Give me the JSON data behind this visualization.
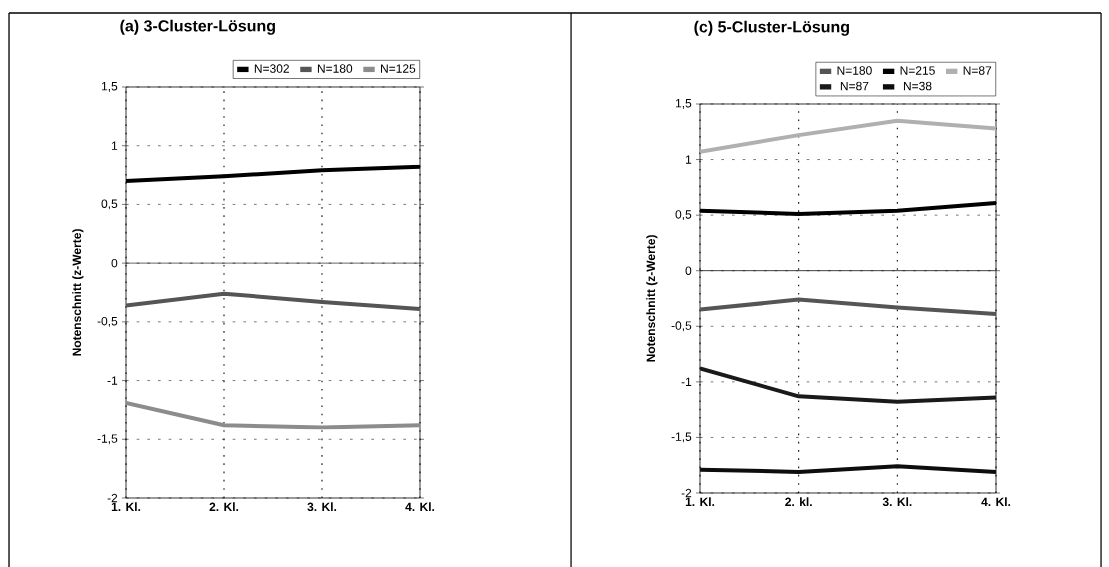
{
  "chart_data": [
    {
      "type": "line",
      "title": "(a) 3-Cluster-Lösung",
      "ylabel": "Notenschnitt (z-Werte)",
      "categories": [
        "1. Kl.",
        "2. Kl.",
        "3. Kl.",
        "4. Kl."
      ],
      "series": [
        {
          "name": "N=302",
          "color": "#000000",
          "values": [
            0.7,
            0.74,
            0.79,
            0.82
          ]
        },
        {
          "name": "N=180",
          "color": "#555555",
          "values": [
            -0.36,
            -0.26,
            -0.33,
            -0.39
          ]
        },
        {
          "name": "N=125",
          "color": "#8c8c8c",
          "values": [
            -1.19,
            -1.38,
            -1.4,
            -1.38
          ]
        }
      ],
      "ylim": [
        -2,
        1.5
      ],
      "yticks": [
        {
          "value": -2,
          "label": "-2"
        },
        {
          "value": -1.5,
          "label": "-1,5"
        },
        {
          "value": -1,
          "label": "-1"
        },
        {
          "value": -0.5,
          "label": "-0,5"
        },
        {
          "value": 0,
          "label": "0"
        },
        {
          "value": 0.5,
          "label": "0,5"
        },
        {
          "value": 1,
          "label": "1"
        },
        {
          "value": 1.5,
          "label": "1,5"
        }
      ],
      "ref_lines": [
        {
          "axis": "y",
          "value": 0,
          "color": "#000000",
          "line_style": "solid"
        }
      ],
      "grid": true,
      "legend": "top",
      "marker": "none",
      "line_style": "solid"
    },
    {
      "type": "line",
      "title": "(c) 5-Cluster-Lösung",
      "ylabel": "Notenschnitt (z-Werte)",
      "categories": [
        "1. Kl.",
        "2. kl.",
        "3. Kl.",
        "4. Kl."
      ],
      "series": [
        {
          "name": "N=180",
          "color": "#555555",
          "values": [
            -0.35,
            -0.26,
            -0.33,
            -0.39
          ]
        },
        {
          "name": "N=215",
          "color": "#000000",
          "values": [
            0.54,
            0.51,
            0.54,
            0.61
          ]
        },
        {
          "name": "N=87",
          "color": "#b0b0b0",
          "values": [
            1.07,
            1.22,
            1.35,
            1.28
          ]
        },
        {
          "name": "N=87",
          "color": "#1a1a1a",
          "values": [
            -0.88,
            -1.13,
            -1.18,
            -1.14
          ]
        },
        {
          "name": "N=38",
          "color": "#0d0d0d",
          "values": [
            -1.79,
            -1.81,
            -1.76,
            -1.81
          ]
        }
      ],
      "ylim": [
        -2,
        1.5
      ],
      "yticks": [
        {
          "value": -2,
          "label": "-2"
        },
        {
          "value": -1.5,
          "label": "-1,5"
        },
        {
          "value": -1,
          "label": "-1"
        },
        {
          "value": -0.5,
          "label": "-0,5"
        },
        {
          "value": 0,
          "label": "0"
        },
        {
          "value": 0.5,
          "label": "0,5"
        },
        {
          "value": 1,
          "label": "1"
        },
        {
          "value": 1.5,
          "label": "1,5"
        }
      ],
      "ref_lines": [
        {
          "axis": "y",
          "value": 0,
          "color": "#000000",
          "line_style": "solid"
        }
      ],
      "grid": true,
      "legend": "top",
      "marker": "none",
      "line_style": "solid"
    }
  ]
}
